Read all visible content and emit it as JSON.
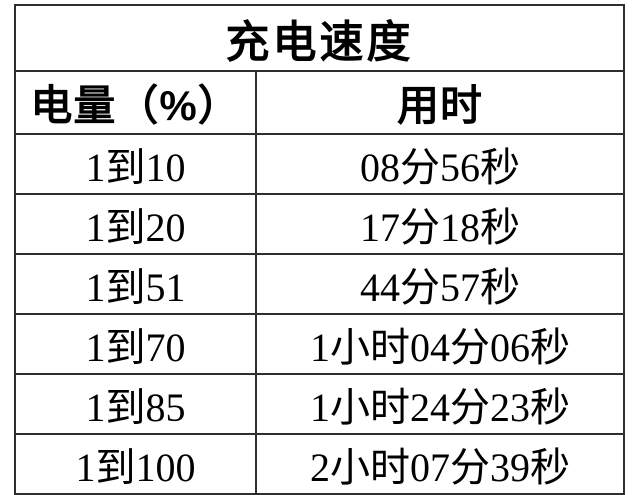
{
  "chart_data": {
    "type": "table",
    "title": "充电速度",
    "columns": [
      "电量（%）",
      "用时"
    ],
    "rows": [
      [
        "1到10",
        "08分56秒"
      ],
      [
        "1到20",
        "17分18秒"
      ],
      [
        "1到51",
        "44分57秒"
      ],
      [
        "1到70",
        "1小时04分06秒"
      ],
      [
        "1到85",
        "1小时24分23秒"
      ],
      [
        "1到100",
        "2小时07分39秒"
      ]
    ],
    "layout_hints": {
      "title_row_merged": true,
      "all_cells_centered": true,
      "last_row_clipped_at_bottom": true
    }
  },
  "colors": {
    "background": "#ffffff",
    "text": "#000000",
    "border": "#2e2e2e"
  }
}
